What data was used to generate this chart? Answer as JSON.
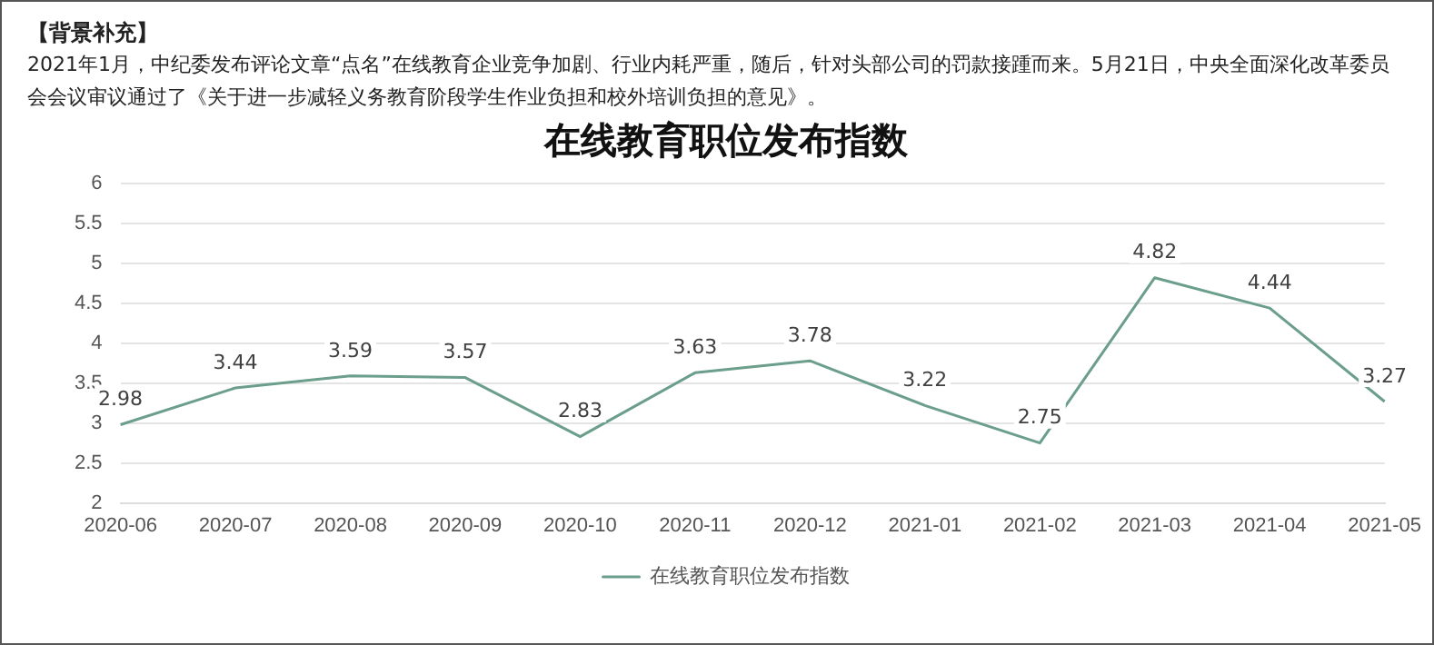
{
  "chart_data": {
    "type": "line",
    "title": "在线教育职位发布指数",
    "annotations": [
      "【背景补充】",
      "2021年1月，中纪委发布评论文章“点名”在线教育企业竞争加剧、行业内耗严重，随后，针对头部公司的罚款接踵而来。5月21日，中央全面深化改革委员会会议审议通过了《关于进一步减轻义务教育阶段学生作业负担和校外培训负担的意见》。"
    ],
    "categories": [
      "2020-06",
      "2020-07",
      "2020-08",
      "2020-09",
      "2020-10",
      "2020-11",
      "2020-12",
      "2021-01",
      "2021-02",
      "2021-03",
      "2021-04",
      "2021-05"
    ],
    "series": [
      {
        "name": "在线教育职位发布指数",
        "color": "#6b9e8b",
        "values": [
          2.98,
          3.44,
          3.59,
          3.57,
          2.83,
          3.63,
          3.78,
          3.22,
          2.75,
          4.82,
          4.44,
          3.27
        ]
      }
    ],
    "ylim": [
      2,
      6
    ],
    "yticks": [
      2,
      2.5,
      3,
      3.5,
      4,
      4.5,
      5,
      5.5,
      6
    ],
    "grid": "y",
    "legend": "bottom",
    "marker": "none",
    "line_style": "solid",
    "data_labels": true
  }
}
